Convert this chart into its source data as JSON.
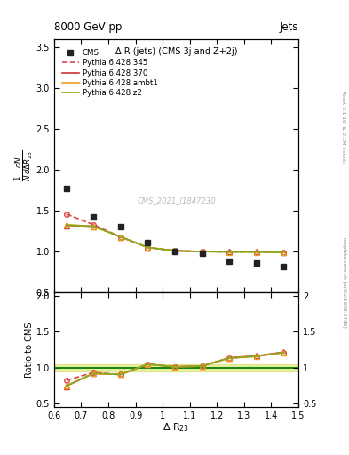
{
  "title_top": "8000 GeV pp",
  "title_right": "Jets",
  "plot_title": "Δ R (jets) (CMS 3j and Z+2j)",
  "xlabel": "Δ R$_{23}$",
  "ylabel_main": "$\\frac{1}{N}\\frac{dN}{d\\Delta R_{23}}$",
  "ylabel_ratio": "Ratio to CMS",
  "watermark": "CMS_2021_I1847230",
  "rivet_text": "Rivet 3.1.10, ≥ 3.3M events",
  "arxiv_text": "mcplots.cern.ch [arXiv:1306.3436]",
  "cms_x": [
    0.645,
    0.745,
    0.845,
    0.945,
    1.045,
    1.145,
    1.245,
    1.345,
    1.445
  ],
  "cms_y": [
    1.77,
    1.42,
    1.3,
    1.1,
    0.995,
    0.975,
    0.875,
    0.855,
    0.815
  ],
  "cms_color": "#222222",
  "p345_x": [
    0.645,
    0.745,
    0.845,
    0.945,
    1.045,
    1.145,
    1.245,
    1.345,
    1.445
  ],
  "p345_y": [
    1.455,
    1.325,
    1.175,
    1.045,
    1.005,
    0.995,
    0.99,
    0.99,
    0.985
  ],
  "p345_color": "#dd4444",
  "p345_label": "Pythia 6.428 345",
  "p370_x": [
    0.645,
    0.745,
    0.845,
    0.945,
    1.045,
    1.145,
    1.245,
    1.345,
    1.445
  ],
  "p370_y": [
    1.315,
    1.305,
    1.175,
    1.045,
    1.005,
    0.995,
    0.995,
    0.995,
    0.99
  ],
  "p370_color": "#cc3333",
  "p370_label": "Pythia 6.428 370",
  "pambt_x": [
    0.645,
    0.745,
    0.845,
    0.945,
    1.045,
    1.145,
    1.245,
    1.345,
    1.445
  ],
  "pambt_y": [
    1.325,
    1.305,
    1.175,
    1.045,
    1.005,
    0.995,
    0.99,
    0.99,
    0.985
  ],
  "pambt_color": "#e8a020",
  "pambt_label": "Pythia 6.428 ambt1",
  "pz2_x": [
    0.645,
    0.745,
    0.845,
    0.945,
    1.045,
    1.145,
    1.245,
    1.345,
    1.445
  ],
  "pz2_y": [
    1.32,
    1.305,
    1.175,
    1.045,
    1.005,
    0.995,
    0.99,
    0.99,
    0.985
  ],
  "pz2_color": "#88aa22",
  "pz2_label": "Pythia 6.428 z2",
  "ratio_p345": [
    0.821,
    0.934,
    0.904,
    1.048,
    1.01,
    1.021,
    1.131,
    1.157,
    1.209
  ],
  "ratio_p370": [
    0.743,
    0.919,
    0.904,
    1.048,
    1.01,
    1.021,
    1.137,
    1.163,
    1.215
  ],
  "ratio_pambt": [
    0.748,
    0.919,
    0.904,
    1.048,
    1.01,
    1.021,
    1.131,
    1.157,
    1.209
  ],
  "ratio_pz2": [
    0.746,
    0.919,
    0.904,
    1.048,
    1.01,
    1.021,
    1.131,
    1.157,
    1.209
  ],
  "xlim": [
    0.6,
    1.5
  ],
  "ylim_main": [
    0.5,
    3.6
  ],
  "ylim_ratio": [
    0.45,
    2.05
  ],
  "yticks_main": [
    0.5,
    1.0,
    1.5,
    2.0,
    2.5,
    3.0,
    3.5
  ],
  "yticks_ratio": [
    0.5,
    1.0,
    1.5,
    2.0
  ],
  "xticks": [
    0.6,
    0.7,
    0.8,
    0.9,
    1.0,
    1.1,
    1.2,
    1.3,
    1.4,
    1.5
  ],
  "band_color": "#ccdd44",
  "band_alpha": 0.5,
  "band_low": 0.95,
  "band_high": 1.05
}
